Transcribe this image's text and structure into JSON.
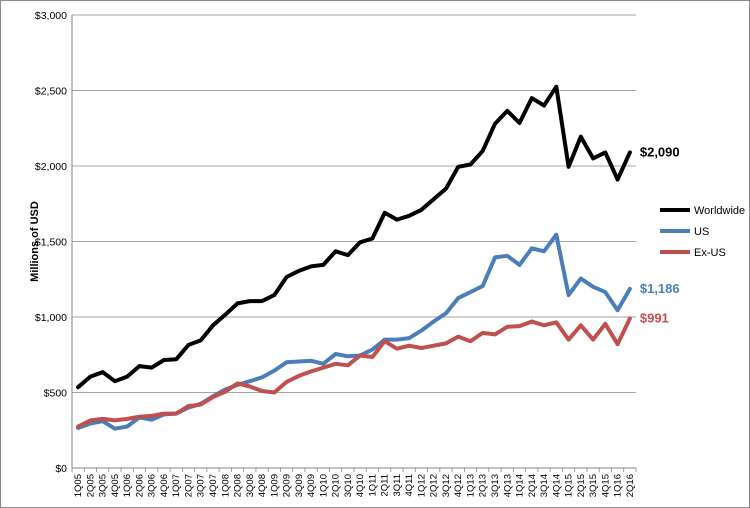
{
  "chart_data": {
    "type": "line",
    "title": "",
    "xlabel": "",
    "ylabel": "Millions of USD",
    "ylim": [
      0,
      3000
    ],
    "yticks": [
      "$0",
      "$500",
      "$1,000",
      "$1,500",
      "$2,000",
      "$2,500",
      "$3,000"
    ],
    "ytick_values": [
      0,
      500,
      1000,
      1500,
      2000,
      2500,
      3000
    ],
    "grid": "horizontal",
    "legend_position": "right",
    "categories": [
      "1Q05",
      "2Q05",
      "3Q05",
      "4Q05",
      "1Q06",
      "2Q06",
      "3Q06",
      "4Q06",
      "1Q07",
      "2Q07",
      "3Q07",
      "4Q07",
      "1Q08",
      "2Q08",
      "3Q08",
      "4Q08",
      "1Q09",
      "2Q09",
      "3Q09",
      "4Q09",
      "1Q10",
      "2Q10",
      "3Q10",
      "4Q10",
      "1Q11",
      "2Q11",
      "3Q11",
      "4Q11",
      "1Q12",
      "2Q12",
      "3Q12",
      "4Q12",
      "1Q13",
      "2Q13",
      "3Q13",
      "4Q13",
      "1Q14",
      "2Q14",
      "3Q14",
      "4Q14",
      "1Q15",
      "2Q15",
      "3Q15",
      "4Q15",
      "1Q16",
      "2Q16"
    ],
    "series": [
      {
        "name": "Worldwide",
        "color": "#000000",
        "end_label": "$2,090",
        "values": [
          535,
          605,
          635,
          575,
          605,
          675,
          665,
          715,
          720,
          815,
          845,
          945,
          1015,
          1090,
          1105,
          1105,
          1145,
          1265,
          1305,
          1335,
          1345,
          1435,
          1410,
          1495,
          1520,
          1690,
          1645,
          1670,
          1710,
          1780,
          1850,
          1995,
          2010,
          2100,
          2280,
          2365,
          2285,
          2450,
          2400,
          2525,
          1995,
          2195,
          2050,
          2090,
          1910,
          2090
        ]
      },
      {
        "name": "US",
        "color": "#4a7ebb",
        "end_label": "$1,186",
        "values": [
          265,
          295,
          310,
          260,
          275,
          335,
          320,
          355,
          360,
          400,
          425,
          475,
          520,
          550,
          575,
          600,
          645,
          700,
          705,
          710,
          690,
          755,
          740,
          745,
          785,
          850,
          850,
          860,
          910,
          970,
          1025,
          1125,
          1165,
          1205,
          1395,
          1405,
          1345,
          1455,
          1435,
          1545,
          1145,
          1255,
          1200,
          1165,
          1045,
          1186
        ]
      },
      {
        "name": "Ex-US",
        "color": "#c0504d",
        "end_label": "$991",
        "values": [
          275,
          315,
          325,
          315,
          325,
          340,
          345,
          360,
          360,
          410,
          420,
          470,
          505,
          560,
          540,
          510,
          500,
          570,
          610,
          640,
          665,
          690,
          680,
          745,
          735,
          840,
          790,
          810,
          795,
          810,
          825,
          870,
          840,
          895,
          885,
          935,
          940,
          970,
          945,
          965,
          850,
          945,
          850,
          955,
          820,
          991
        ]
      }
    ]
  }
}
